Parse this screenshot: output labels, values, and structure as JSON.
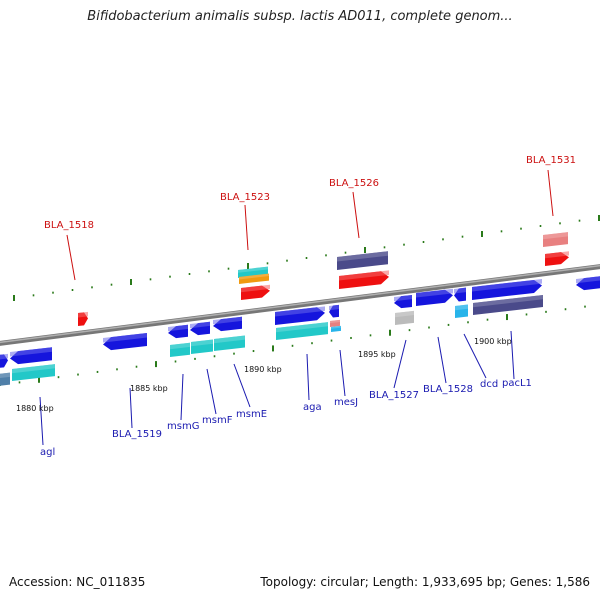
{
  "title": "Bifidobacterium animalis subsp. lactis AD011, complete genom...",
  "footer": {
    "accession": "Accession: NC_011835",
    "summary": "Topology: circular; Length: 1,933,695 bp; Genes: 1,586"
  },
  "colors": {
    "backbone": "#8a8a8a",
    "tick": "#2a7a1a",
    "label_blue": "#1a1ab0",
    "label_red": "#cc1010",
    "gene_blue": "#1515dd",
    "gene_cyan": "#22c8c8",
    "gene_red": "#ee1010",
    "gene_orange": "#f09a10",
    "gene_slate": "#4a4a8a",
    "gene_pink": "#e88080",
    "gene_grey": "#bbbbbb",
    "gene_sky": "#28b4ea",
    "gene_steel": "#4f7fa8"
  },
  "scale_labels": [
    "1880 kbp",
    "1885 kbp",
    "1890 kbp",
    "1895 kbp",
    "1900 kbp"
  ],
  "gene_labels": {
    "agl": "agl",
    "bla_1519": "BLA_1519",
    "msmG": "msmG",
    "msmF": "msmF",
    "msmE": "msmE",
    "aga": "aga",
    "mesJ": "mesJ",
    "bla_1527": "BLA_1527",
    "bla_1528": "BLA_1528",
    "dcd": "dcd",
    "pacL1": "pacL1",
    "bla_1518": "BLA_1518",
    "bla_1523": "BLA_1523",
    "bla_1526": "BLA_1526",
    "bla_1531": "BLA_1531"
  }
}
